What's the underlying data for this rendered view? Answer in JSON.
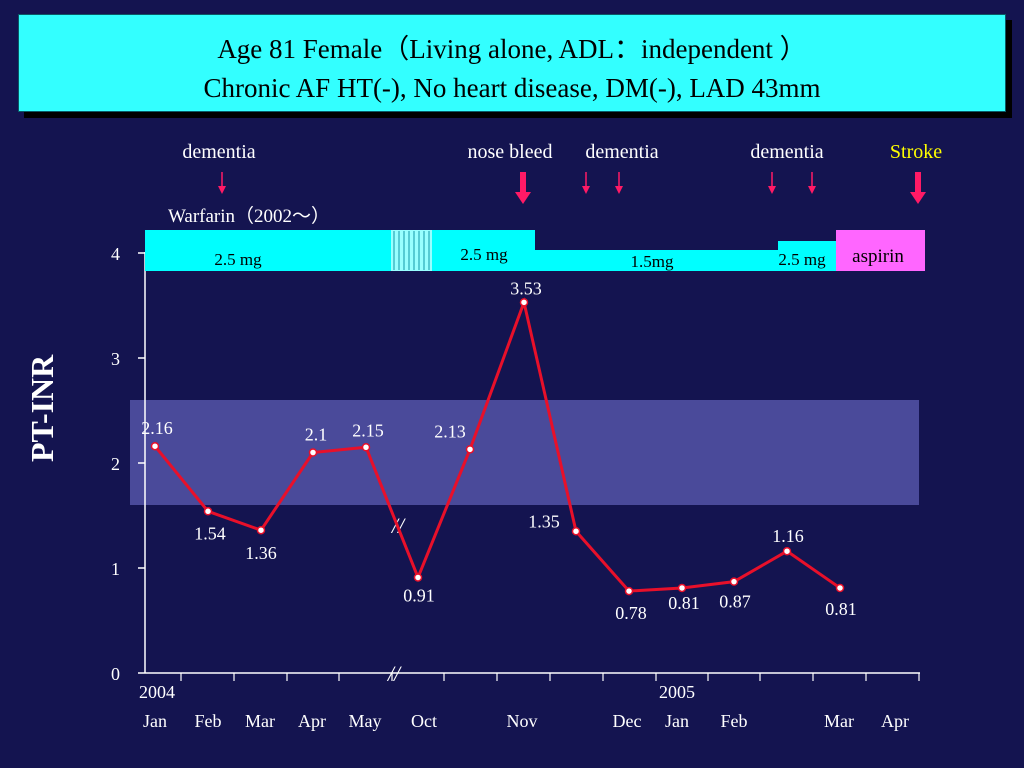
{
  "title": {
    "line1": "Age 81 Female（Living alone, ADL：independent ）",
    "line2": "Chronic AF   HT(-), No heart disease, DM(-), LAD 43mm"
  },
  "events": [
    {
      "label": "dementia",
      "color": "#ffffff"
    },
    {
      "label": "nose bleed",
      "color": "#ffffff"
    },
    {
      "label": "dementia",
      "color": "#ffffff"
    },
    {
      "label": "dementia",
      "color": "#ffffff"
    },
    {
      "label": "Stroke",
      "color": "#ffff00"
    }
  ],
  "warfarin_label": "Warfarin（2002～）",
  "dose_bars": [
    {
      "label": "2.5 mg",
      "color": "#00ffff"
    },
    {
      "label": "2.5 mg",
      "color": "#00ffff"
    },
    {
      "label": "1.5mg",
      "color": "#00ffff"
    },
    {
      "label": "2.5 mg",
      "color": "#00ffff"
    },
    {
      "label": "aspirin",
      "color": "#ff66ff"
    }
  ],
  "colors": {
    "background": "#141450",
    "title_box": "#33ffff",
    "line": "#e8102a",
    "arrow": "#ff1a66",
    "target_band": "#4a4a9a",
    "bar": "#00ffff",
    "aspirin": "#ff66ff",
    "text": "#ffffff"
  },
  "chart_data": {
    "type": "line",
    "ylabel": "PT-INR",
    "ylim": [
      0,
      4
    ],
    "yticks": [
      "0",
      "1",
      "2",
      "3",
      "4"
    ],
    "year_labels": [
      "2004",
      "2005"
    ],
    "x_labels": [
      "Jan",
      "Feb",
      "Mar",
      "Apr",
      "May",
      "Oct",
      "Nov",
      "Dec",
      "Jan",
      "Feb",
      "Mar",
      "Apr"
    ],
    "target_range": [
      1.6,
      2.6
    ],
    "axis_break": "//",
    "series": [
      {
        "values": [
          2.16,
          1.54,
          1.36,
          2.1,
          2.15,
          0.91,
          2.13,
          3.53,
          1.35,
          0.78,
          0.81,
          0.87,
          1.16,
          0.81
        ],
        "labels": [
          "2.16",
          "1.54",
          "1.36",
          "2.1",
          "2.15",
          "0.91",
          "2.13",
          "3.53",
          "1.35",
          "0.78",
          "0.81",
          "0.87",
          "1.16",
          "0.81"
        ]
      }
    ]
  }
}
